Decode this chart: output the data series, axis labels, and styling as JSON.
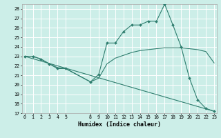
{
  "xlabel": "Humidex (Indice chaleur)",
  "bg_color": "#cceee8",
  "grid_color": "#ffffff",
  "line_color": "#2e7d6e",
  "ylim": [
    17,
    28.5
  ],
  "yticks": [
    17,
    18,
    19,
    20,
    21,
    22,
    23,
    24,
    25,
    26,
    27,
    28
  ],
  "xticks": [
    0,
    1,
    2,
    3,
    4,
    5,
    8,
    9,
    10,
    11,
    12,
    13,
    14,
    15,
    16,
    17,
    18,
    19,
    20,
    21,
    22,
    23
  ],
  "xlim": [
    -0.3,
    23.3
  ],
  "line1_x": [
    0,
    1,
    2,
    3,
    4,
    5,
    8,
    9,
    10,
    11,
    12,
    13,
    14,
    15,
    16,
    17,
    18,
    19,
    20,
    21,
    22,
    23
  ],
  "line1_y": [
    23.0,
    23.0,
    22.7,
    22.2,
    21.7,
    21.7,
    20.3,
    21.1,
    24.4,
    24.4,
    25.6,
    26.3,
    26.3,
    26.7,
    26.7,
    28.5,
    26.3,
    24.0,
    20.7,
    18.4,
    17.5,
    17.2
  ],
  "line2_x": [
    0,
    1,
    2,
    3,
    4,
    5,
    8,
    9,
    10,
    11,
    12,
    13,
    14,
    15,
    16,
    17,
    18,
    19,
    20,
    21,
    22,
    23
  ],
  "line2_y": [
    23.0,
    23.0,
    22.7,
    22.2,
    21.8,
    21.7,
    20.3,
    20.7,
    22.2,
    22.8,
    23.1,
    23.4,
    23.6,
    23.7,
    23.8,
    23.9,
    23.9,
    23.9,
    23.8,
    23.7,
    23.5,
    22.3
  ],
  "line3_x": [
    0,
    23
  ],
  "line3_y": [
    23.0,
    17.2
  ]
}
